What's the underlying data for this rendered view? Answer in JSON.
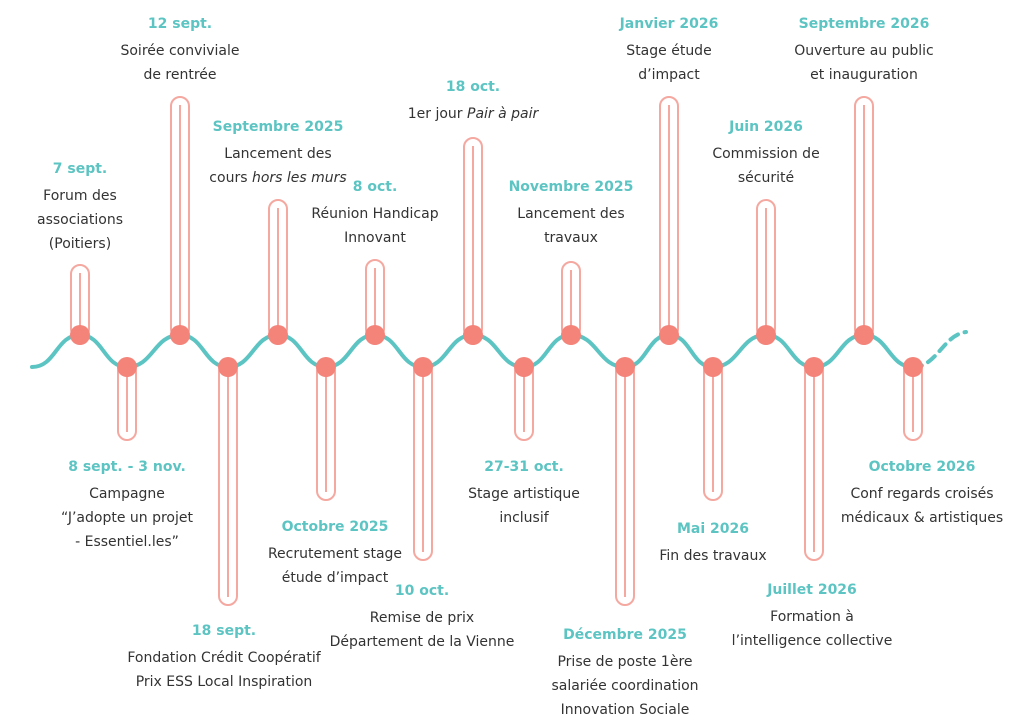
{
  "colors": {
    "wave": "#5cc4c2",
    "dot": "#f4837a",
    "stem": "#f4a8a0",
    "date": "#5cc4c2",
    "text": "#333333"
  },
  "events": [
    {
      "id": "e1",
      "date": "7 sept.",
      "lines": [
        "Forum des",
        "associations",
        "(Poitiers)"
      ]
    },
    {
      "id": "e2",
      "date": "12 sept.",
      "lines": [
        "Soirée conviviale",
        "de rentrée"
      ]
    },
    {
      "id": "e3",
      "date": "Septembre 2025",
      "lines": [
        "Lancement des",
        "cours |hors les murs|"
      ]
    },
    {
      "id": "e4",
      "date": "8 oct.",
      "lines": [
        "Réunion Handicap",
        "Innovant"
      ]
    },
    {
      "id": "e5",
      "date": "18 oct.",
      "lines": [
        "1er jour |Pair à pair|"
      ]
    },
    {
      "id": "e6",
      "date": "Novembre 2025",
      "lines": [
        "Lancement des",
        "travaux"
      ]
    },
    {
      "id": "e7",
      "date": "Janvier 2026",
      "lines": [
        "Stage étude",
        "d’impact"
      ]
    },
    {
      "id": "e8",
      "date": "Juin 2026",
      "lines": [
        "Commission de",
        "sécurité"
      ]
    },
    {
      "id": "e9",
      "date": "Septembre 2026",
      "lines": [
        "Ouverture au public",
        "et inauguration"
      ]
    },
    {
      "id": "e10",
      "date": "8 sept. - 3 nov.",
      "lines": [
        "Campagne",
        "“J’adopte un projet",
        "- Essentiel.les”"
      ]
    },
    {
      "id": "e11",
      "date": "18 sept.",
      "lines": [
        "Fondation Crédit Coopératif",
        "Prix ESS Local Inspiration"
      ]
    },
    {
      "id": "e12",
      "date": "Octobre 2025",
      "lines": [
        "Recrutement stage",
        "étude d’impact"
      ]
    },
    {
      "id": "e13",
      "date": "10 oct.",
      "lines": [
        "Remise de prix",
        "Département de la Vienne"
      ]
    },
    {
      "id": "e14",
      "date": "27-31 oct.",
      "lines": [
        "Stage artistique",
        "inclusif"
      ]
    },
    {
      "id": "e15",
      "date": "Décembre 2025",
      "lines": [
        "Prise de poste 1ère",
        "salariée coordination",
        "Innovation Sociale"
      ]
    },
    {
      "id": "e16",
      "date": "Mai 2026",
      "lines": [
        "Fin des travaux"
      ]
    },
    {
      "id": "e17",
      "date": "Juillet 2026",
      "lines": [
        "Formation à",
        "l’intelligence collective"
      ]
    },
    {
      "id": "e18",
      "date": "Octobre 2026",
      "lines": [
        "Conf regards croisés",
        "médicaux & artistiques"
      ]
    }
  ]
}
